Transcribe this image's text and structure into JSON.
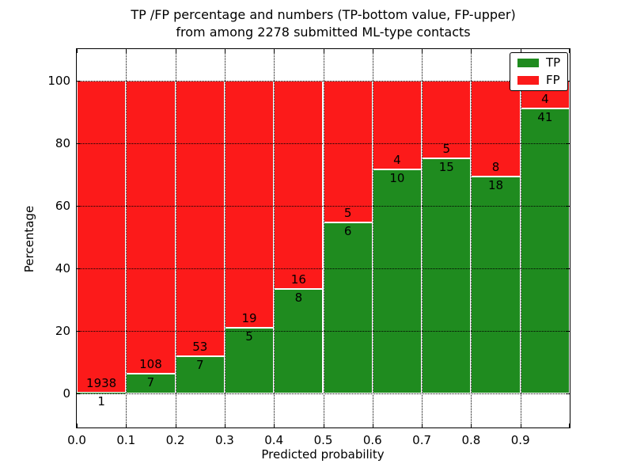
{
  "chart_data": {
    "type": "bar",
    "stacked": true,
    "title_line1": "TP /FP percentage and numbers (TP-bottom value, FP-upper)",
    "title_line2": "from among 2278 submitted ML-type contacts",
    "xlabel": "Predicted probability",
    "ylabel": "Percentage",
    "xlim": [
      0.0,
      1.0
    ],
    "ylim": [
      -11,
      110
    ],
    "x_tick_labels": [
      "0.0",
      "0.1",
      "0.2",
      "0.3",
      "0.4",
      "0.5",
      "0.6",
      "0.7",
      "0.8",
      "0.9"
    ],
    "y_tick_values": [
      0,
      20,
      40,
      60,
      80,
      100
    ],
    "y_tick_labels": [
      "0",
      "20",
      "40",
      "60",
      "80",
      "100"
    ],
    "grid": "dotted",
    "legend": {
      "position": "upper right",
      "entries": [
        "TP",
        "FP"
      ]
    },
    "series": [
      {
        "name": "TP",
        "color": "#1f8b1f"
      },
      {
        "name": "FP",
        "color": "#fc1a1a"
      }
    ],
    "bins": [
      {
        "x0": 0.0,
        "x1": 0.1,
        "tp": 1,
        "fp": 1938,
        "tp_pct": 0.05
      },
      {
        "x0": 0.1,
        "x1": 0.2,
        "tp": 7,
        "fp": 108,
        "tp_pct": 6.09
      },
      {
        "x0": 0.2,
        "x1": 0.3,
        "tp": 7,
        "fp": 53,
        "tp_pct": 11.67
      },
      {
        "x0": 0.3,
        "x1": 0.4,
        "tp": 5,
        "fp": 19,
        "tp_pct": 20.83
      },
      {
        "x0": 0.4,
        "x1": 0.5,
        "tp": 8,
        "fp": 16,
        "tp_pct": 33.33
      },
      {
        "x0": 0.5,
        "x1": 0.6,
        "tp": 6,
        "fp": 5,
        "tp_pct": 54.55
      },
      {
        "x0": 0.6,
        "x1": 0.7,
        "tp": 10,
        "fp": 4,
        "tp_pct": 71.43
      },
      {
        "x0": 0.7,
        "x1": 0.8,
        "tp": 15,
        "fp": 5,
        "tp_pct": 75.0
      },
      {
        "x0": 0.8,
        "x1": 0.9,
        "tp": 18,
        "fp": 8,
        "tp_pct": 69.23
      },
      {
        "x0": 0.9,
        "x1": 1.0,
        "tp": 41,
        "fp": 4,
        "tp_pct": 91.11
      }
    ]
  }
}
